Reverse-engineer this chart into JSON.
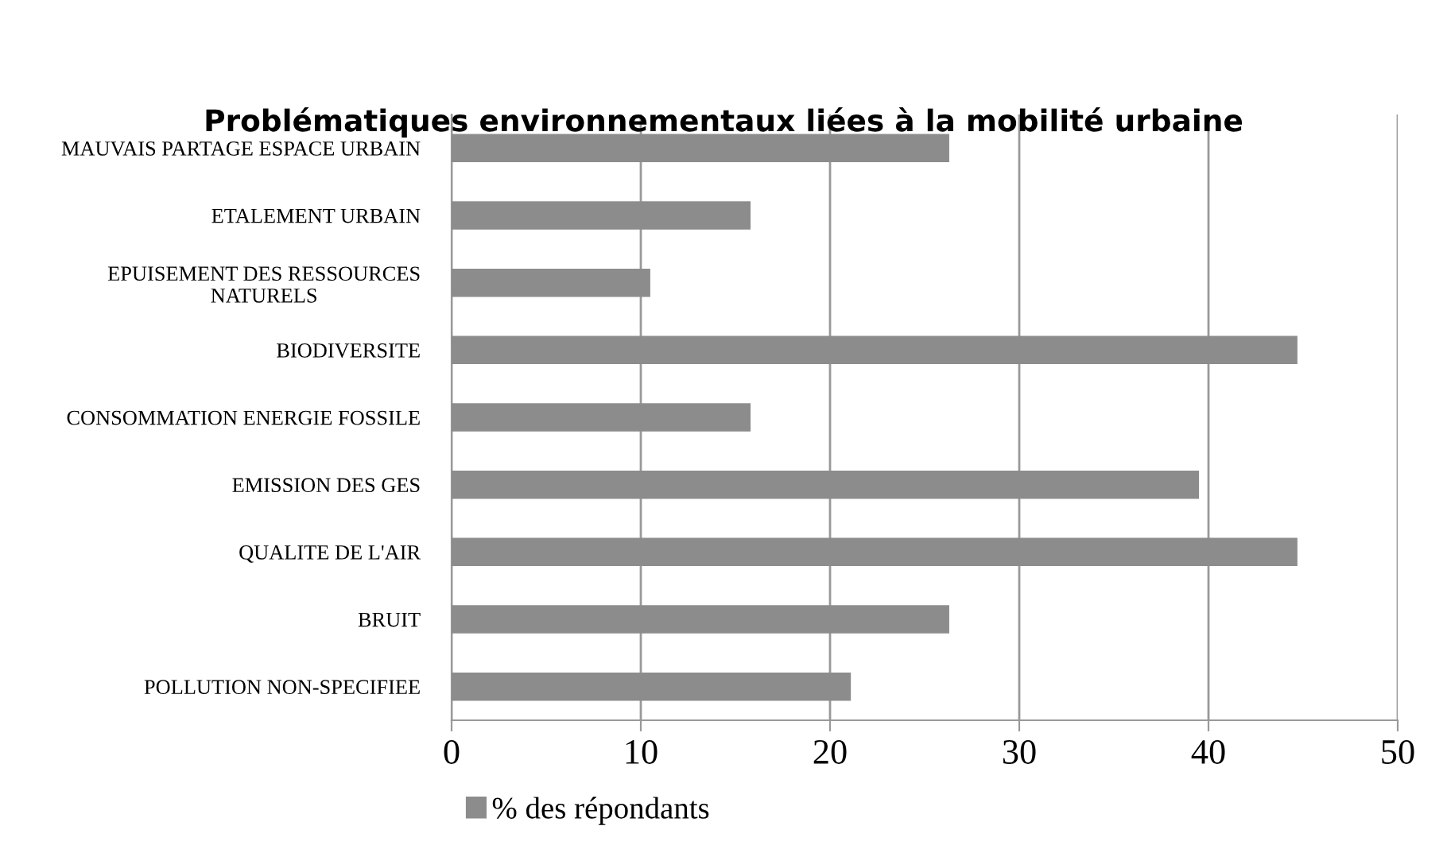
{
  "chart_data": {
    "type": "bar",
    "orientation": "horizontal",
    "title": "Problématiques environnementaux liées à la mobilité urbaine",
    "categories": [
      "MAUVAIS PARTAGE ESPACE URBAIN",
      "ETALEMENT URBAIN",
      "EPUISEMENT DES RESSOURCES NATURELS",
      "BIODIVERSITE",
      "CONSOMMATION ENERGIE FOSSILE",
      "EMISSION DES GES",
      "QUALITE DE L'AIR",
      "BRUIT",
      "POLLUTION NON-SPECIFIEE"
    ],
    "series": [
      {
        "name": "% des répondants",
        "color": "#8c8c8c",
        "values": [
          26.3,
          15.8,
          10.5,
          44.7,
          15.8,
          39.5,
          44.7,
          26.3,
          21.1
        ]
      }
    ],
    "xlim": [
      0,
      50
    ],
    "xticks": [
      0,
      10,
      20,
      30,
      40,
      50
    ],
    "grid": "x",
    "legend": "bottom"
  }
}
